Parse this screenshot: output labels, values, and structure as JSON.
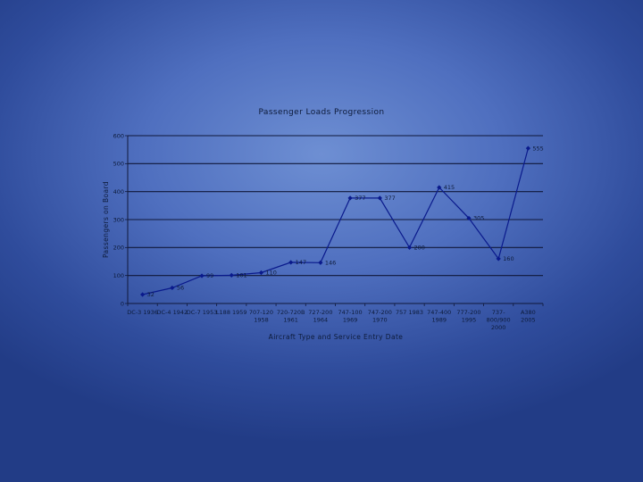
{
  "chart_data": {
    "type": "line",
    "title": "Passenger Loads Progression",
    "xlabel": "Aircraft Type and Service Entry Date",
    "ylabel": "Passengers on Board",
    "ylim": [
      0,
      600
    ],
    "yticks": [
      "0",
      "100",
      "200",
      "300",
      "400",
      "500",
      "600"
    ],
    "grid": true,
    "categories": [
      [
        "DC-3 1936"
      ],
      [
        "DC-4 1942"
      ],
      [
        "DC-7 1953"
      ],
      [
        "L188 1959"
      ],
      [
        "707-120",
        "1958"
      ],
      [
        "720-720B",
        "1961"
      ],
      [
        "727-200",
        "1964"
      ],
      [
        "747-100",
        "1969"
      ],
      [
        "747-200",
        "1970"
      ],
      [
        "757 1983"
      ],
      [
        "747-400",
        "1989"
      ],
      [
        "777-200",
        "1995"
      ],
      [
        "737-",
        "800/900",
        "2000"
      ],
      [
        "A380",
        "2005"
      ]
    ],
    "series": [
      {
        "color": "#0a1a8c",
        "values": [
          32,
          56,
          99,
          101,
          110,
          147,
          146,
          377,
          377,
          200,
          415,
          305,
          160,
          555
        ],
        "labels": [
          "32",
          "56",
          "99",
          "101",
          "110",
          "147",
          "146",
          "377",
          "377",
          "200",
          "415",
          "305",
          "160",
          "555"
        ]
      }
    ]
  }
}
